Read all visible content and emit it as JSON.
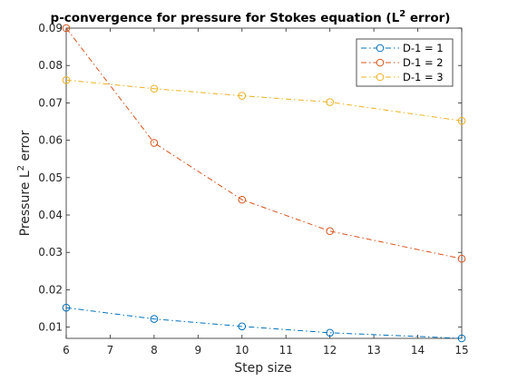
{
  "chart_data": {
    "type": "line",
    "title": "p-convergence for pressure for Stokes equation (L",
    "title_superscript": "2",
    "title_suffix": " error)",
    "xlabel": "Step size",
    "ylabel_prefix": "Pressure L",
    "ylabel_superscript": "2",
    "ylabel_suffix": " error",
    "xlim": [
      6,
      15
    ],
    "ylim": [
      0.007,
      0.09
    ],
    "xticks": [
      6,
      7,
      8,
      9,
      10,
      11,
      12,
      13,
      14,
      15
    ],
    "yticks": [
      0.01,
      0.02,
      0.03,
      0.04,
      0.05,
      0.06,
      0.07,
      0.08,
      0.09
    ],
    "ytick_labels": [
      "0.01",
      "0.02",
      "0.03",
      "0.04",
      "0.05",
      "0.06",
      "0.07",
      "0.08",
      "0.09"
    ],
    "x": [
      6,
      8,
      10,
      12,
      15
    ],
    "legend_location": "top-right",
    "series": [
      {
        "name": "D-1 = 1",
        "color": "#0072BD",
        "values": [
          0.0152,
          0.0122,
          0.0102,
          0.0085,
          0.007
        ]
      },
      {
        "name": "D-1 = 2",
        "color": "#D95319",
        "values": [
          0.09,
          0.0593,
          0.0441,
          0.0357,
          0.0283
        ]
      },
      {
        "name": "D-1 = 3",
        "color": "#EDB120",
        "values": [
          0.0761,
          0.0738,
          0.0719,
          0.0702,
          0.0652
        ]
      }
    ]
  }
}
